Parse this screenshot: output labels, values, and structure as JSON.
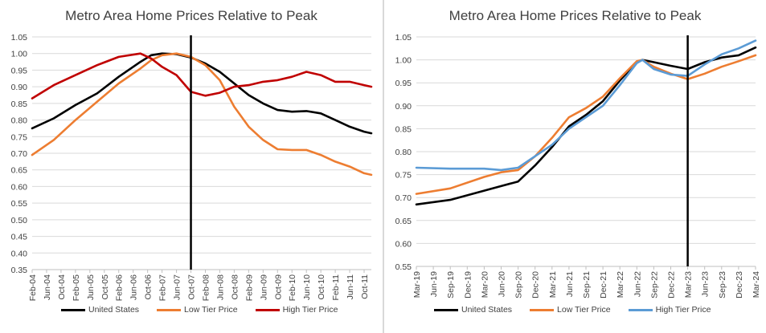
{
  "chart_data": [
    {
      "type": "line",
      "title": "Metro Area Home Prices Relative to Peak",
      "xlabel": "",
      "ylabel": "",
      "ylim": [
        0.35,
        1.05
      ],
      "y_ticks": [
        "1.05",
        "1.00",
        "0.95",
        "0.90",
        "0.85",
        "0.80",
        "0.75",
        "0.70",
        "0.65",
        "0.60",
        "0.55",
        "0.50",
        "0.45",
        "0.40",
        "0.35"
      ],
      "x_ticks": [
        "Feb-04",
        "Jun-04",
        "Oct-04",
        "Feb-05",
        "Jun-05",
        "Oct-05",
        "Feb-06",
        "Jun-06",
        "Oct-06",
        "Feb-07",
        "Jun-07",
        "Oct-07",
        "Feb-08",
        "Jun-08",
        "Oct-08",
        "Feb-09",
        "Jun-09",
        "Oct-09",
        "Feb-10",
        "Jun-10",
        "Oct-10",
        "Feb-11",
        "Jun-11",
        "Oct-11"
      ],
      "x_range_months": [
        "2004-02",
        "2011-12"
      ],
      "vertical_marker": "2007-10",
      "grid": "horizontal",
      "legend_position": "bottom",
      "series": [
        {
          "name": "United States",
          "color": "#000000",
          "points": [
            [
              "2004-02",
              0.775
            ],
            [
              "2004-08",
              0.805
            ],
            [
              "2005-02",
              0.845
            ],
            [
              "2005-08",
              0.88
            ],
            [
              "2006-02",
              0.93
            ],
            [
              "2006-08",
              0.975
            ],
            [
              "2006-11",
              0.995
            ],
            [
              "2007-02",
              1.0
            ],
            [
              "2007-06",
              0.998
            ],
            [
              "2007-10",
              0.988
            ],
            [
              "2008-02",
              0.97
            ],
            [
              "2008-06",
              0.945
            ],
            [
              "2008-10",
              0.91
            ],
            [
              "2009-02",
              0.875
            ],
            [
              "2009-06",
              0.85
            ],
            [
              "2009-10",
              0.83
            ],
            [
              "2010-02",
              0.825
            ],
            [
              "2010-06",
              0.827
            ],
            [
              "2010-10",
              0.82
            ],
            [
              "2011-02",
              0.8
            ],
            [
              "2011-06",
              0.78
            ],
            [
              "2011-10",
              0.765
            ],
            [
              "2011-12",
              0.76
            ]
          ]
        },
        {
          "name": "Low Tier Price",
          "color": "#ed7d31",
          "points": [
            [
              "2004-02",
              0.695
            ],
            [
              "2004-08",
              0.74
            ],
            [
              "2005-02",
              0.8
            ],
            [
              "2005-08",
              0.855
            ],
            [
              "2006-02",
              0.91
            ],
            [
              "2006-08",
              0.955
            ],
            [
              "2006-11",
              0.98
            ],
            [
              "2007-02",
              0.995
            ],
            [
              "2007-06",
              1.0
            ],
            [
              "2007-10",
              0.99
            ],
            [
              "2008-02",
              0.965
            ],
            [
              "2008-06",
              0.92
            ],
            [
              "2008-10",
              0.84
            ],
            [
              "2009-02",
              0.78
            ],
            [
              "2009-06",
              0.74
            ],
            [
              "2009-10",
              0.712
            ],
            [
              "2010-02",
              0.71
            ],
            [
              "2010-06",
              0.71
            ],
            [
              "2010-10",
              0.695
            ],
            [
              "2011-02",
              0.675
            ],
            [
              "2011-06",
              0.66
            ],
            [
              "2011-10",
              0.64
            ],
            [
              "2011-12",
              0.635
            ]
          ]
        },
        {
          "name": "High Tier Price",
          "color": "#c00000",
          "points": [
            [
              "2004-02",
              0.865
            ],
            [
              "2004-08",
              0.905
            ],
            [
              "2005-02",
              0.935
            ],
            [
              "2005-08",
              0.965
            ],
            [
              "2006-02",
              0.99
            ],
            [
              "2006-08",
              1.0
            ],
            [
              "2006-11",
              0.985
            ],
            [
              "2007-02",
              0.96
            ],
            [
              "2007-06",
              0.935
            ],
            [
              "2007-10",
              0.885
            ],
            [
              "2008-02",
              0.873
            ],
            [
              "2008-06",
              0.882
            ],
            [
              "2008-10",
              0.9
            ],
            [
              "2009-02",
              0.905
            ],
            [
              "2009-06",
              0.915
            ],
            [
              "2009-10",
              0.92
            ],
            [
              "2010-02",
              0.93
            ],
            [
              "2010-06",
              0.945
            ],
            [
              "2010-10",
              0.935
            ],
            [
              "2011-02",
              0.915
            ],
            [
              "2011-06",
              0.915
            ],
            [
              "2011-10",
              0.905
            ],
            [
              "2011-12",
              0.9
            ]
          ]
        }
      ]
    },
    {
      "type": "line",
      "title": "Metro Area Home Prices Relative to Peak",
      "xlabel": "",
      "ylabel": "",
      "ylim": [
        0.55,
        1.05
      ],
      "y_ticks": [
        "1.05",
        "1.00",
        "0.95",
        "0.90",
        "0.85",
        "0.80",
        "0.75",
        "0.70",
        "0.65",
        "0.60",
        "0.55"
      ],
      "x_ticks": [
        "Mar-19",
        "Jun-19",
        "Sep-19",
        "Dec-19",
        "Mar-20",
        "Jun-20",
        "Sep-20",
        "Dec-20",
        "Mar-21",
        "Jun-21",
        "Sep-21",
        "Dec-21",
        "Mar-22",
        "Jun-22",
        "Sep-22",
        "Dec-22",
        "Mar-23",
        "Jun-23",
        "Sep-23",
        "Dec-23",
        "Mar-24"
      ],
      "x_range_months": [
        "2019-03",
        "2024-03"
      ],
      "vertical_marker": "2023-03",
      "grid": "horizontal",
      "legend_position": "bottom",
      "series": [
        {
          "name": "United States",
          "color": "#000000",
          "points": [
            [
              "2019-03",
              0.685
            ],
            [
              "2019-09",
              0.695
            ],
            [
              "2020-03",
              0.715
            ],
            [
              "2020-06",
              0.725
            ],
            [
              "2020-09",
              0.735
            ],
            [
              "2020-12",
              0.77
            ],
            [
              "2021-03",
              0.81
            ],
            [
              "2021-06",
              0.855
            ],
            [
              "2021-09",
              0.88
            ],
            [
              "2021-12",
              0.91
            ],
            [
              "2022-03",
              0.955
            ],
            [
              "2022-06",
              0.995
            ],
            [
              "2022-07",
              1.0
            ],
            [
              "2022-09",
              0.995
            ],
            [
              "2022-12",
              0.987
            ],
            [
              "2023-03",
              0.98
            ],
            [
              "2023-06",
              0.995
            ],
            [
              "2023-09",
              1.005
            ],
            [
              "2023-12",
              1.01
            ],
            [
              "2024-03",
              1.027
            ]
          ]
        },
        {
          "name": "Low Tier Price",
          "color": "#ed7d31",
          "points": [
            [
              "2019-03",
              0.708
            ],
            [
              "2019-09",
              0.72
            ],
            [
              "2020-03",
              0.745
            ],
            [
              "2020-06",
              0.755
            ],
            [
              "2020-09",
              0.76
            ],
            [
              "2020-12",
              0.79
            ],
            [
              "2021-03",
              0.83
            ],
            [
              "2021-06",
              0.875
            ],
            [
              "2021-09",
              0.895
            ],
            [
              "2021-12",
              0.92
            ],
            [
              "2022-03",
              0.96
            ],
            [
              "2022-06",
              0.997
            ],
            [
              "2022-07",
              1.0
            ],
            [
              "2022-09",
              0.985
            ],
            [
              "2022-12",
              0.97
            ],
            [
              "2023-03",
              0.958
            ],
            [
              "2023-06",
              0.97
            ],
            [
              "2023-09",
              0.985
            ],
            [
              "2023-12",
              0.997
            ],
            [
              "2024-03",
              1.01
            ]
          ]
        },
        {
          "name": "High Tier Price",
          "color": "#5b9bd5",
          "points": [
            [
              "2019-03",
              0.765
            ],
            [
              "2019-09",
              0.763
            ],
            [
              "2020-03",
              0.763
            ],
            [
              "2020-06",
              0.76
            ],
            [
              "2020-09",
              0.765
            ],
            [
              "2020-12",
              0.79
            ],
            [
              "2021-03",
              0.815
            ],
            [
              "2021-06",
              0.85
            ],
            [
              "2021-09",
              0.875
            ],
            [
              "2021-12",
              0.9
            ],
            [
              "2022-03",
              0.945
            ],
            [
              "2022-06",
              0.993
            ],
            [
              "2022-07",
              1.0
            ],
            [
              "2022-09",
              0.98
            ],
            [
              "2022-12",
              0.968
            ],
            [
              "2023-03",
              0.965
            ],
            [
              "2023-06",
              0.99
            ],
            [
              "2023-09",
              1.012
            ],
            [
              "2023-12",
              1.025
            ],
            [
              "2024-03",
              1.042
            ]
          ]
        }
      ]
    }
  ]
}
